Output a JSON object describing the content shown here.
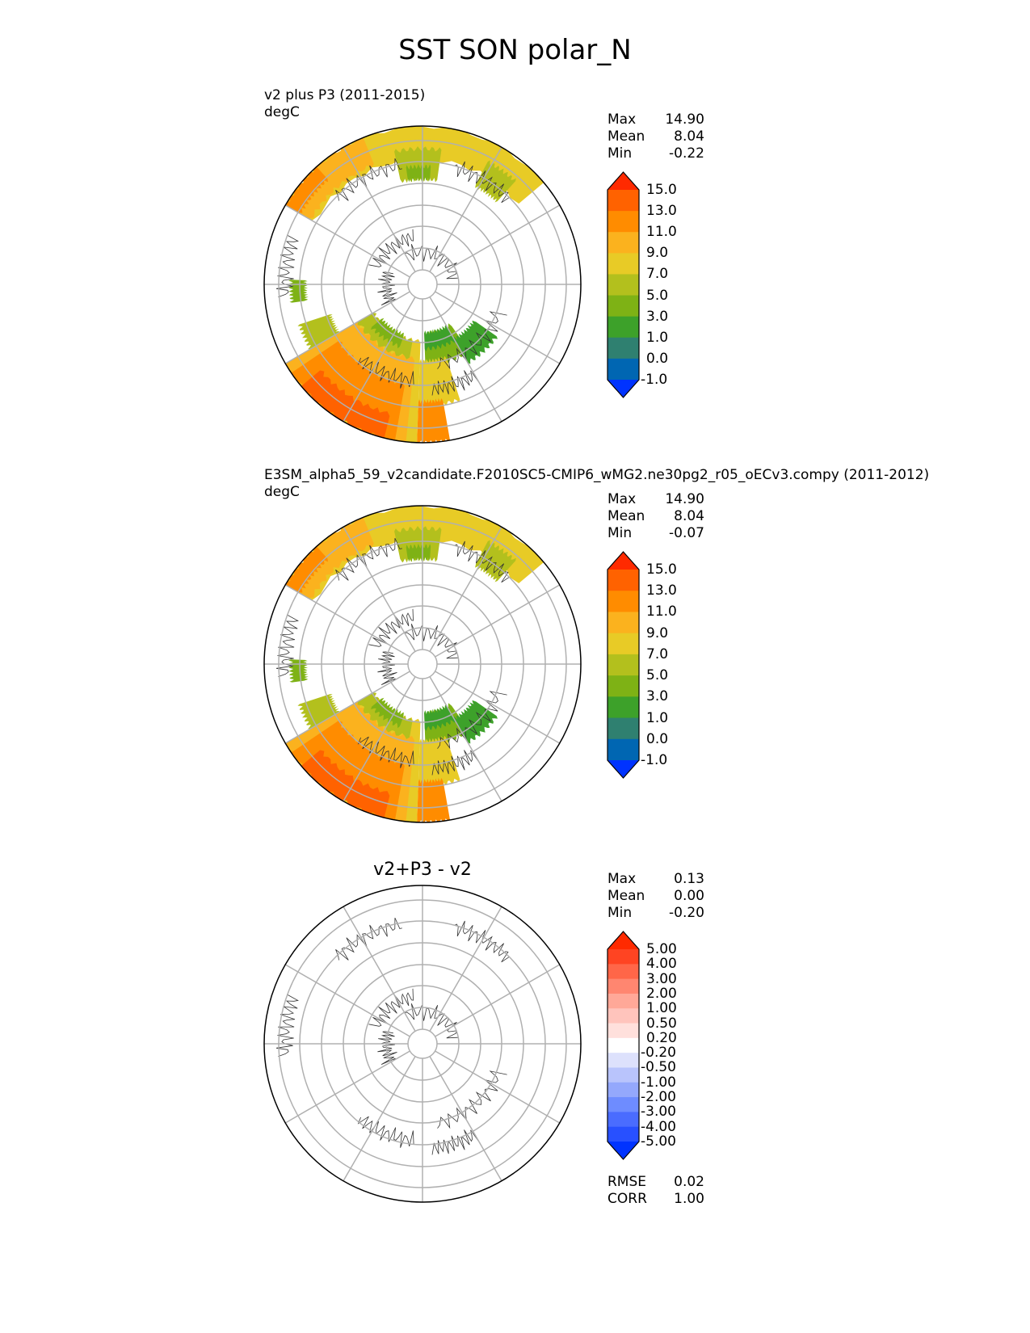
{
  "figure_title": "SST SON polar_N",
  "panels": [
    {
      "title_line1": "v2 plus P3 (2011-2015)",
      "title_line2": "degC",
      "stats": {
        "max_label": "Max",
        "max": "14.90",
        "mean_label": "Mean",
        "mean": "8.04",
        "min_label": "Min",
        "min": "-0.22"
      }
    },
    {
      "title_line1": "E3SM_alpha5_59_v2candidate.F2010SC5-CMIP6_wMG2.ne30pg2_r05_oECv3.compy (2011-2012)",
      "title_line2": "degC",
      "stats": {
        "max_label": "Max",
        "max": "14.90",
        "mean_label": "Mean",
        "mean": "8.04",
        "min_label": "Min",
        "min": "-0.07"
      }
    },
    {
      "title": "v2+P3 - v2",
      "stats": {
        "max_label": "Max",
        "max": "0.13",
        "mean_label": "Mean",
        "mean": "0.00",
        "min_label": "Min",
        "min": "-0.20"
      },
      "metrics": {
        "rmse_label": "RMSE",
        "rmse": "0.02",
        "corr_label": "CORR",
        "corr": "1.00"
      }
    }
  ],
  "colorbar_main": {
    "levels": [
      "15.0",
      "13.0",
      "11.0",
      "9.0",
      "7.0",
      "5.0",
      "3.0",
      "1.0",
      "0.0",
      "-1.0"
    ],
    "colors": [
      "#ff2a00",
      "#ff6200",
      "#ff8c00",
      "#fbb21e",
      "#e8cb26",
      "#b3c01d",
      "#7eb215",
      "#3da12a",
      "#2f8070",
      "#0066b2",
      "#0033ff"
    ]
  },
  "colorbar_diff": {
    "levels": [
      "5.00",
      "4.00",
      "3.00",
      "2.00",
      "1.00",
      "0.50",
      "0.20",
      "-0.20",
      "-0.50",
      "-1.00",
      "-2.00",
      "-3.00",
      "-4.00",
      "-5.00"
    ],
    "colors": [
      "#ff2a00",
      "#ff4422",
      "#ff6648",
      "#ff8670",
      "#ffa898",
      "#ffc4bc",
      "#ffe0dc",
      "#ffffff",
      "#dde1fc",
      "#b9c4fc",
      "#94a8fc",
      "#6e8cff",
      "#4a6cff",
      "#2850ff",
      "#0033ff"
    ]
  }
}
